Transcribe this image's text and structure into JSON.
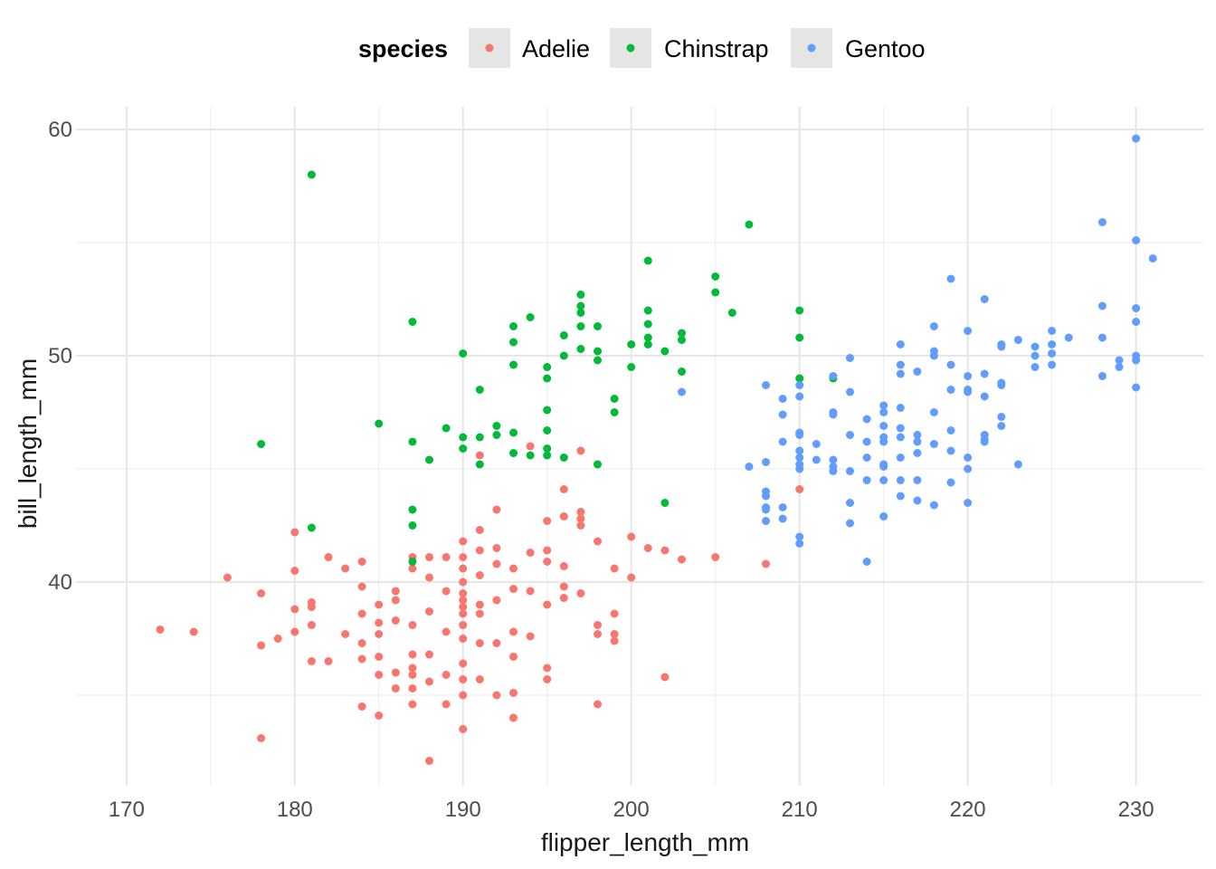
{
  "chart_data": {
    "type": "scatter",
    "xlabel": "flipper_length_mm",
    "ylabel": "bill_length_mm",
    "xlim": [
      167,
      234
    ],
    "ylim": [
      31,
      61
    ],
    "x_ticks": [
      170,
      180,
      190,
      200,
      210,
      220,
      230
    ],
    "y_ticks": [
      40,
      50,
      60
    ],
    "grid": true,
    "legend": {
      "title": "species",
      "position": "top"
    },
    "series": [
      {
        "name": "Adelie",
        "color": "#F8766D",
        "points": [
          [
            172,
            37.9
          ],
          [
            174,
            37.8
          ],
          [
            176,
            40.2
          ],
          [
            178,
            39.5
          ],
          [
            178,
            37.2
          ],
          [
            178,
            33.1
          ],
          [
            180,
            42.2
          ],
          [
            180,
            40.5
          ],
          [
            180,
            38.8
          ],
          [
            180,
            37.8
          ],
          [
            179,
            37.5
          ],
          [
            181,
            39.1
          ],
          [
            181,
            38.1
          ],
          [
            181,
            36.5
          ],
          [
            181,
            38.9
          ],
          [
            182,
            41.1
          ],
          [
            182,
            36.5
          ],
          [
            183,
            40.6
          ],
          [
            183,
            37.7
          ],
          [
            184,
            40.9
          ],
          [
            184,
            39.8
          ],
          [
            184,
            38.6
          ],
          [
            184,
            37.3
          ],
          [
            184,
            36.6
          ],
          [
            184,
            34.5
          ],
          [
            185,
            39.0
          ],
          [
            185,
            38.2
          ],
          [
            185,
            37.7
          ],
          [
            185,
            36.7
          ],
          [
            185,
            35.9
          ],
          [
            185,
            34.1
          ],
          [
            186,
            39.6
          ],
          [
            186,
            39.2
          ],
          [
            186,
            38.3
          ],
          [
            186,
            36.0
          ],
          [
            186,
            35.3
          ],
          [
            187,
            41.1
          ],
          [
            187,
            40.6
          ],
          [
            187,
            38.1
          ],
          [
            187,
            36.8
          ],
          [
            187,
            35.9
          ],
          [
            187,
            35.3
          ],
          [
            187,
            34.6
          ],
          [
            187,
            36.2
          ],
          [
            188,
            41.1
          ],
          [
            188,
            40.2
          ],
          [
            188,
            38.7
          ],
          [
            188,
            36.8
          ],
          [
            188,
            35.6
          ],
          [
            188,
            32.1
          ],
          [
            189,
            41.1
          ],
          [
            189,
            39.6
          ],
          [
            189,
            37.8
          ],
          [
            189,
            35.9
          ],
          [
            189,
            34.6
          ],
          [
            190,
            41.8
          ],
          [
            190,
            41.1
          ],
          [
            190,
            40.6
          ],
          [
            190,
            40.0
          ],
          [
            190,
            39.5
          ],
          [
            190,
            39.2
          ],
          [
            190,
            38.9
          ],
          [
            190,
            38.6
          ],
          [
            190,
            38.1
          ],
          [
            190,
            37.5
          ],
          [
            190,
            36.4
          ],
          [
            190,
            35.7
          ],
          [
            190,
            35.0
          ],
          [
            190,
            33.5
          ],
          [
            191,
            45.6
          ],
          [
            191,
            42.3
          ],
          [
            191,
            41.4
          ],
          [
            191,
            40.3
          ],
          [
            191,
            39.0
          ],
          [
            191,
            38.6
          ],
          [
            191,
            37.3
          ],
          [
            191,
            35.7
          ],
          [
            192,
            43.2
          ],
          [
            192,
            41.5
          ],
          [
            192,
            40.8
          ],
          [
            192,
            39.2
          ],
          [
            192,
            37.3
          ],
          [
            192,
            35.0
          ],
          [
            193,
            40.6
          ],
          [
            193,
            39.7
          ],
          [
            193,
            37.8
          ],
          [
            193,
            36.7
          ],
          [
            193,
            35.1
          ],
          [
            193,
            34.0
          ],
          [
            194,
            46.0
          ],
          [
            194,
            41.3
          ],
          [
            194,
            39.6
          ],
          [
            194,
            37.6
          ],
          [
            195,
            42.7
          ],
          [
            195,
            41.4
          ],
          [
            195,
            40.9
          ],
          [
            195,
            39.0
          ],
          [
            195,
            36.2
          ],
          [
            195,
            35.7
          ],
          [
            196,
            44.1
          ],
          [
            196,
            42.9
          ],
          [
            196,
            40.7
          ],
          [
            196,
            39.8
          ],
          [
            196,
            39.3
          ],
          [
            197,
            45.8
          ],
          [
            197,
            43.1
          ],
          [
            197,
            42.5
          ],
          [
            197,
            42.8
          ],
          [
            197,
            39.5
          ],
          [
            198,
            41.8
          ],
          [
            198,
            38.1
          ],
          [
            198,
            37.7
          ],
          [
            198,
            34.6
          ],
          [
            199,
            40.6
          ],
          [
            199,
            38.6
          ],
          [
            199,
            37.7
          ],
          [
            199,
            37.4
          ],
          [
            200,
            42.0
          ],
          [
            200,
            40.2
          ],
          [
            201,
            41.5
          ],
          [
            202,
            41.4
          ],
          [
            202,
            35.8
          ],
          [
            203,
            41.0
          ],
          [
            205,
            41.1
          ],
          [
            208,
            40.8
          ],
          [
            210,
            44.1
          ]
        ]
      },
      {
        "name": "Chinstrap",
        "color": "#00BA38",
        "points": [
          [
            178,
            46.1
          ],
          [
            181,
            58.0
          ],
          [
            181,
            42.4
          ],
          [
            185,
            47.0
          ],
          [
            187,
            51.5
          ],
          [
            187,
            46.2
          ],
          [
            187,
            43.2
          ],
          [
            187,
            42.5
          ],
          [
            187,
            40.9
          ],
          [
            188,
            45.4
          ],
          [
            189,
            46.8
          ],
          [
            190,
            50.1
          ],
          [
            190,
            46.4
          ],
          [
            190,
            45.9
          ],
          [
            191,
            48.5
          ],
          [
            191,
            46.4
          ],
          [
            191,
            45.2
          ],
          [
            192,
            46.9
          ],
          [
            192,
            46.5
          ],
          [
            193,
            51.3
          ],
          [
            193,
            50.6
          ],
          [
            193,
            49.6
          ],
          [
            193,
            46.6
          ],
          [
            193,
            45.7
          ],
          [
            194,
            51.7
          ],
          [
            194,
            45.6
          ],
          [
            195,
            49.5
          ],
          [
            195,
            49.0
          ],
          [
            195,
            47.6
          ],
          [
            195,
            46.7
          ],
          [
            195,
            45.9
          ],
          [
            195,
            45.6
          ],
          [
            196,
            50.9
          ],
          [
            196,
            50.0
          ],
          [
            196,
            45.5
          ],
          [
            197,
            52.7
          ],
          [
            197,
            52.2
          ],
          [
            197,
            51.9
          ],
          [
            197,
            51.3
          ],
          [
            197,
            50.3
          ],
          [
            198,
            51.3
          ],
          [
            198,
            50.2
          ],
          [
            198,
            49.8
          ],
          [
            198,
            45.2
          ],
          [
            199,
            48.1
          ],
          [
            199,
            47.5
          ],
          [
            200,
            50.5
          ],
          [
            200,
            49.5
          ],
          [
            201,
            54.2
          ],
          [
            201,
            52.0
          ],
          [
            201,
            51.4
          ],
          [
            201,
            50.8
          ],
          [
            201,
            50.5
          ],
          [
            202,
            50.2
          ],
          [
            202,
            43.5
          ],
          [
            203,
            51.0
          ],
          [
            203,
            50.7
          ],
          [
            203,
            49.3
          ],
          [
            205,
            53.5
          ],
          [
            205,
            52.8
          ],
          [
            206,
            51.9
          ],
          [
            207,
            55.8
          ],
          [
            210,
            52.0
          ],
          [
            210,
            50.8
          ],
          [
            210,
            49.0
          ],
          [
            212,
            49.0
          ]
        ]
      },
      {
        "name": "Gentoo",
        "color": "#619CFF",
        "points": [
          [
            203,
            48.4
          ],
          [
            207,
            45.1
          ],
          [
            208,
            48.7
          ],
          [
            208,
            45.3
          ],
          [
            208,
            44.0
          ],
          [
            208,
            43.8
          ],
          [
            208,
            43.3
          ],
          [
            208,
            43.2
          ],
          [
            208,
            42.7
          ],
          [
            209,
            48.1
          ],
          [
            209,
            47.4
          ],
          [
            209,
            46.2
          ],
          [
            209,
            43.3
          ],
          [
            209,
            42.8
          ],
          [
            210,
            48.7
          ],
          [
            210,
            48.2
          ],
          [
            210,
            46.6
          ],
          [
            210,
            46.5
          ],
          [
            210,
            45.8
          ],
          [
            210,
            45.5
          ],
          [
            210,
            45.2
          ],
          [
            210,
            45.0
          ],
          [
            210,
            42.0
          ],
          [
            210,
            41.7
          ],
          [
            211,
            46.1
          ],
          [
            211,
            45.4
          ],
          [
            212,
            49.1
          ],
          [
            212,
            47.5
          ],
          [
            212,
            47.4
          ],
          [
            212,
            45.4
          ],
          [
            212,
            45.1
          ],
          [
            212,
            44.9
          ],
          [
            213,
            49.9
          ],
          [
            213,
            48.4
          ],
          [
            213,
            46.5
          ],
          [
            213,
            44.9
          ],
          [
            213,
            43.5
          ],
          [
            213,
            42.6
          ],
          [
            214,
            47.2
          ],
          [
            214,
            46.2
          ],
          [
            214,
            45.5
          ],
          [
            214,
            44.5
          ],
          [
            214,
            40.9
          ],
          [
            215,
            47.8
          ],
          [
            215,
            47.5
          ],
          [
            215,
            46.9
          ],
          [
            215,
            46.4
          ],
          [
            215,
            46.2
          ],
          [
            215,
            45.2
          ],
          [
            215,
            45.1
          ],
          [
            215,
            44.5
          ],
          [
            215,
            42.9
          ],
          [
            216,
            50.5
          ],
          [
            216,
            49.6
          ],
          [
            216,
            49.2
          ],
          [
            216,
            47.7
          ],
          [
            216,
            46.8
          ],
          [
            216,
            46.4
          ],
          [
            216,
            45.5
          ],
          [
            216,
            44.5
          ],
          [
            216,
            43.8
          ],
          [
            217,
            49.3
          ],
          [
            217,
            46.5
          ],
          [
            217,
            46.2
          ],
          [
            217,
            45.7
          ],
          [
            217,
            44.5
          ],
          [
            217,
            43.6
          ],
          [
            218,
            51.3
          ],
          [
            218,
            50.2
          ],
          [
            218,
            50.0
          ],
          [
            218,
            47.5
          ],
          [
            218,
            46.1
          ],
          [
            218,
            43.4
          ],
          [
            219,
            53.4
          ],
          [
            219,
            49.6
          ],
          [
            219,
            48.5
          ],
          [
            219,
            46.7
          ],
          [
            219,
            45.8
          ],
          [
            219,
            44.4
          ],
          [
            220,
            51.1
          ],
          [
            220,
            49.1
          ],
          [
            220,
            48.5
          ],
          [
            220,
            48.4
          ],
          [
            220,
            45.5
          ],
          [
            220,
            45.0
          ],
          [
            220,
            43.5
          ],
          [
            221,
            52.5
          ],
          [
            221,
            49.2
          ],
          [
            221,
            48.2
          ],
          [
            221,
            46.5
          ],
          [
            221,
            46.2
          ],
          [
            221,
            46.3
          ],
          [
            222,
            50.5
          ],
          [
            222,
            50.4
          ],
          [
            222,
            48.8
          ],
          [
            222,
            48.7
          ],
          [
            222,
            47.3
          ],
          [
            222,
            46.9
          ],
          [
            223,
            50.7
          ],
          [
            223,
            45.2
          ],
          [
            224,
            50.4
          ],
          [
            224,
            50.0
          ],
          [
            224,
            49.5
          ],
          [
            225,
            51.1
          ],
          [
            225,
            50.5
          ],
          [
            225,
            50.1
          ],
          [
            225,
            49.6
          ],
          [
            226,
            50.8
          ],
          [
            228,
            55.9
          ],
          [
            228,
            52.2
          ],
          [
            228,
            50.8
          ],
          [
            228,
            49.1
          ],
          [
            229,
            49.8
          ],
          [
            229,
            49.5
          ],
          [
            230,
            59.6
          ],
          [
            230,
            55.1
          ],
          [
            230,
            52.1
          ],
          [
            230,
            51.5
          ],
          [
            230,
            50.0
          ],
          [
            230,
            49.8
          ],
          [
            230,
            48.6
          ],
          [
            231,
            54.3
          ]
        ]
      }
    ]
  }
}
